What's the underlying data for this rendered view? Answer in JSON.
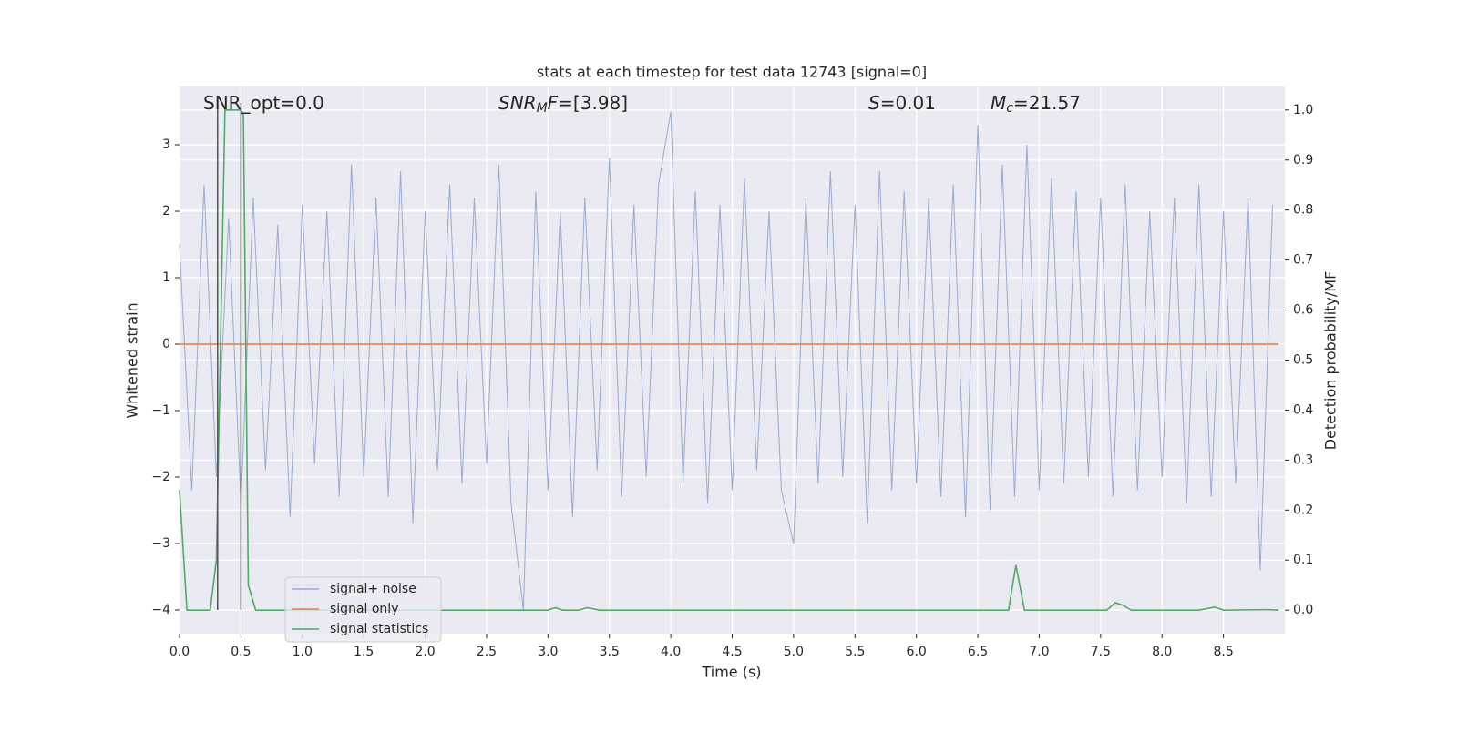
{
  "chart_data": {
    "type": "line",
    "title": "stats at each timestep for test data 12743 [signal=0]",
    "x_label": "Time (s)",
    "y_label": "Whitened strain",
    "y2_label": "Detection probability/MF",
    "annotations": [
      [
        {
          "text": "SNR_opt=0.0"
        }
      ],
      [
        {
          "text": "SNR",
          "italic": true
        },
        {
          "text": "M",
          "italic": true,
          "sub": true
        },
        {
          "text": "F",
          "italic": true
        },
        {
          "text": "=[3.98]"
        }
      ],
      [
        {
          "text": "S",
          "italic": true
        },
        {
          "text": "=0.01"
        }
      ],
      [
        {
          "text": "M",
          "italic": true
        },
        {
          "text": "c",
          "italic": true,
          "sub": true
        },
        {
          "text": "=21.57"
        }
      ]
    ],
    "xlim": [
      0,
      9.0
    ],
    "ylim": [
      -4.356,
      3.877
    ],
    "y2lim": [
      -0.047,
      1.047
    ],
    "xticks": [
      {
        "value": 0,
        "label": "0.0"
      },
      0.5,
      {
        "value": 1,
        "label": "1.0"
      },
      1.5,
      {
        "value": 2,
        "label": "2.0"
      },
      2.5,
      {
        "value": 3,
        "label": "3.0"
      },
      3.5,
      {
        "value": 4,
        "label": "4.0"
      },
      4.5,
      {
        "value": 5,
        "label": "5.0"
      },
      5.5,
      {
        "value": 6,
        "label": "6.0"
      },
      6.5,
      {
        "value": 7,
        "label": "7.0"
      },
      7.5,
      {
        "value": 8,
        "label": "8.0"
      },
      8.5
    ],
    "yticks": [
      {
        "value": -4,
        "label": "−4"
      },
      {
        "value": -3,
        "label": "−3"
      },
      {
        "value": -2,
        "label": "−2"
      },
      {
        "value": -1,
        "label": "−1"
      },
      0,
      1,
      2,
      3
    ],
    "y2ticks": [
      {
        "value": 0,
        "label": "0.0"
      },
      0.1,
      0.2,
      0.3,
      0.4,
      0.5,
      0.6,
      0.7,
      0.8,
      0.9,
      {
        "value": 1,
        "label": "1.0"
      }
    ],
    "grid": true,
    "series": [
      {
        "name": "signal+ noise",
        "color": "#9aabd0",
        "x": [
          0,
          0.1,
          0.2,
          0.3,
          0.4,
          0.5,
          0.6,
          0.7,
          0.8,
          0.9,
          1,
          1.1,
          1.2,
          1.3,
          1.4,
          1.5,
          1.6,
          1.7,
          1.8,
          1.9,
          2,
          2.1,
          2.2,
          2.3,
          2.4,
          2.5,
          2.6,
          2.7,
          2.8,
          2.9,
          3,
          3.1,
          3.2,
          3.3,
          3.4,
          3.5,
          3.6,
          3.7,
          3.8,
          3.9,
          4,
          4.1,
          4.2,
          4.3,
          4.4,
          4.5,
          4.6,
          4.7,
          4.8,
          4.9,
          5,
          5.1,
          5.2,
          5.3,
          5.4,
          5.5,
          5.6,
          5.7,
          5.8,
          5.9,
          6,
          6.1,
          6.2,
          6.3,
          6.4,
          6.5,
          6.6,
          6.7,
          6.8,
          6.9,
          7,
          7.1,
          7.2,
          7.3,
          7.4,
          7.5,
          7.6,
          7.7,
          7.8,
          7.9,
          8,
          8.1,
          8.2,
          8.3,
          8.4,
          8.5,
          8.6,
          8.7,
          8.8,
          8.9
        ],
        "values": [
          1.5,
          -2.2,
          2.4,
          -2.0,
          1.9,
          -2.4,
          2.2,
          -1.9,
          1.8,
          -2.6,
          2.1,
          -1.8,
          2.0,
          -2.3,
          2.7,
          -2.0,
          2.2,
          -2.3,
          2.6,
          -2.7,
          2.0,
          -1.9,
          2.4,
          -2.1,
          2.2,
          -1.8,
          2.7,
          -2.4,
          -4.0,
          2.3,
          -2.2,
          2.0,
          -2.6,
          2.2,
          -1.9,
          2.8,
          -2.3,
          2.1,
          -2.0,
          2.4,
          3.5,
          -2.1,
          2.3,
          -2.4,
          2.1,
          -2.2,
          2.5,
          -1.9,
          2.0,
          -2.2,
          -3.0,
          2.2,
          -2.1,
          2.6,
          -2.0,
          2.1,
          -2.7,
          2.6,
          -2.2,
          2.3,
          -2.1,
          2.2,
          -2.3,
          2.4,
          -2.6,
          3.3,
          -2.5,
          2.7,
          -2.3,
          3.0,
          -2.2,
          2.5,
          -2.1,
          2.3,
          -2.0,
          2.2,
          -2.3,
          2.4,
          -2.2,
          2.0,
          -2.0,
          2.2,
          -2.4,
          2.4,
          -2.3,
          2.0,
          -2.1,
          2.2,
          -3.4,
          2.1
        ]
      },
      {
        "name": "signal only",
        "color": "#dd8452",
        "x": [
          0,
          8.95
        ],
        "values": [
          0,
          0
        ]
      },
      {
        "name": "signal statistics",
        "color": "#55a868",
        "axis": "y2",
        "x": [
          0,
          0.06,
          0.25,
          0.3,
          0.37,
          0.5,
          0.52,
          0.56,
          0.62,
          3.0,
          3.06,
          3.12,
          3.25,
          3.32,
          3.42,
          6.75,
          6.81,
          6.88,
          7.55,
          7.62,
          7.68,
          7.75,
          8.3,
          8.43,
          8.5,
          8.85,
          8.95
        ],
        "values": [
          0.24,
          0,
          0,
          0.1,
          1.0,
          1.0,
          0.99,
          0.05,
          0,
          0,
          0.005,
          0,
          0,
          0.005,
          0,
          0,
          0.09,
          0,
          0,
          0.015,
          0.01,
          0,
          0,
          0.006,
          0,
          0.001,
          0
        ]
      }
    ],
    "vlines": {
      "x": [
        0.31,
        0.5
      ],
      "ymin": -4,
      "ymax": 3.63,
      "color": "#555555"
    },
    "legend": "lower left"
  }
}
